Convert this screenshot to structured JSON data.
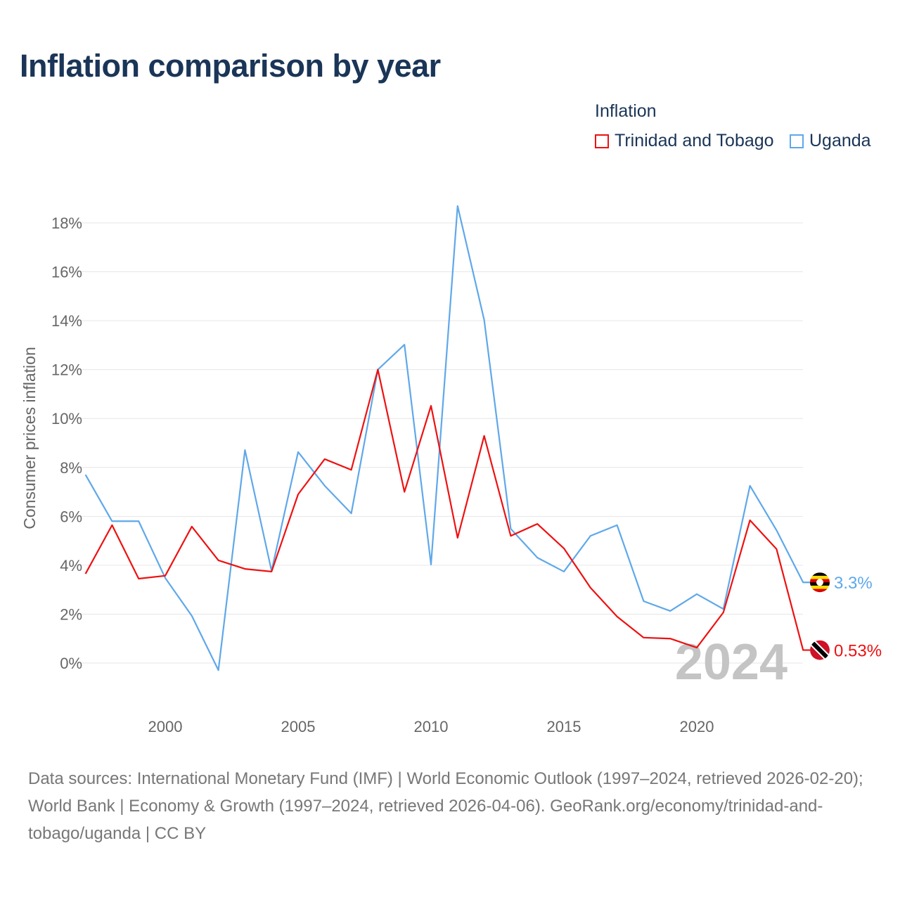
{
  "chart_data": {
    "type": "line",
    "title": "Inflation comparison by year",
    "ylabel": "Consumer prices inflation",
    "xlabel": "",
    "legend_title": "Inflation",
    "legend_position": "top-right",
    "ylim": [
      -1,
      19
    ],
    "xlim": [
      1997,
      2024
    ],
    "yticks": [
      0,
      2,
      4,
      6,
      8,
      10,
      12,
      14,
      16,
      18
    ],
    "ytick_labels": [
      "0%",
      "2%",
      "4%",
      "6%",
      "8%",
      "10%",
      "12%",
      "14%",
      "16%",
      "18%"
    ],
    "xticks": [
      2000,
      2005,
      2010,
      2015,
      2020
    ],
    "xtick_labels": [
      "2000",
      "2005",
      "2010",
      "2015",
      "2020"
    ],
    "grid": true,
    "year_watermark": "2024",
    "x": [
      1997,
      1998,
      1999,
      2000,
      2001,
      2002,
      2003,
      2004,
      2005,
      2006,
      2007,
      2008,
      2009,
      2010,
      2011,
      2012,
      2013,
      2014,
      2015,
      2016,
      2017,
      2018,
      2019,
      2020,
      2021,
      2022,
      2023,
      2024
    ],
    "series": [
      {
        "name": "Trinidad and Tobago",
        "color": "#ee1111",
        "end_label": "0.53%",
        "values": [
          3.65,
          5.64,
          3.45,
          3.57,
          5.58,
          4.2,
          3.85,
          3.74,
          6.9,
          8.34,
          7.9,
          12.0,
          7.0,
          10.52,
          5.12,
          9.29,
          5.2,
          5.69,
          4.69,
          3.08,
          1.9,
          1.04,
          1.0,
          0.63,
          2.07,
          5.84,
          4.66,
          0.53
        ]
      },
      {
        "name": "Uganda",
        "color": "#5fa8ea",
        "end_label": "3.3%",
        "values": [
          7.7,
          5.8,
          5.8,
          3.48,
          1.93,
          -0.29,
          8.71,
          3.77,
          8.63,
          7.25,
          6.12,
          12.0,
          13.02,
          4.03,
          18.69,
          14.03,
          5.49,
          4.31,
          3.74,
          5.2,
          5.64,
          2.53,
          2.13,
          2.82,
          2.21,
          7.25,
          5.43,
          3.3
        ]
      }
    ]
  },
  "source": "Data sources: International Monetary Fund (IMF) | World Economic Outlook (1997–2024, retrieved 2026-02-20); World Bank | Economy & Growth (1997–2024, retrieved 2026-04-06). GeoRank.org/economy/trinidad-and-tobago/uganda | CC BY"
}
